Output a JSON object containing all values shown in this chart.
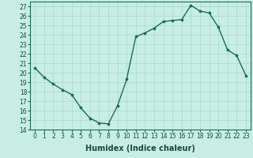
{
  "xlabel": "Humidex (Indice chaleur)",
  "x": [
    0,
    1,
    2,
    3,
    4,
    5,
    6,
    7,
    8,
    9,
    10,
    11,
    12,
    13,
    14,
    15,
    16,
    17,
    18,
    19,
    20,
    21,
    22,
    23
  ],
  "y": [
    20.5,
    19.5,
    18.8,
    18.2,
    17.7,
    16.3,
    15.2,
    14.7,
    14.6,
    16.5,
    19.3,
    23.8,
    24.2,
    24.7,
    25.4,
    25.5,
    25.6,
    27.1,
    26.5,
    26.3,
    24.8,
    22.4,
    21.8,
    19.7
  ],
  "line_color": "#1a6b5a",
  "marker_color": "#1a6b5a",
  "bg_color": "#c8ede5",
  "grid_color": "#a8d8cc",
  "ylim": [
    14,
    27.5
  ],
  "xlim": [
    -0.5,
    23.5
  ],
  "yticks": [
    14,
    15,
    16,
    17,
    18,
    19,
    20,
    21,
    22,
    23,
    24,
    25,
    26,
    27
  ],
  "xticks": [
    0,
    1,
    2,
    3,
    4,
    5,
    6,
    7,
    8,
    9,
    10,
    11,
    12,
    13,
    14,
    15,
    16,
    17,
    18,
    19,
    20,
    21,
    22,
    23
  ],
  "tick_fontsize": 5.5,
  "xlabel_fontsize": 7,
  "linewidth": 1.0,
  "markersize": 2.2
}
